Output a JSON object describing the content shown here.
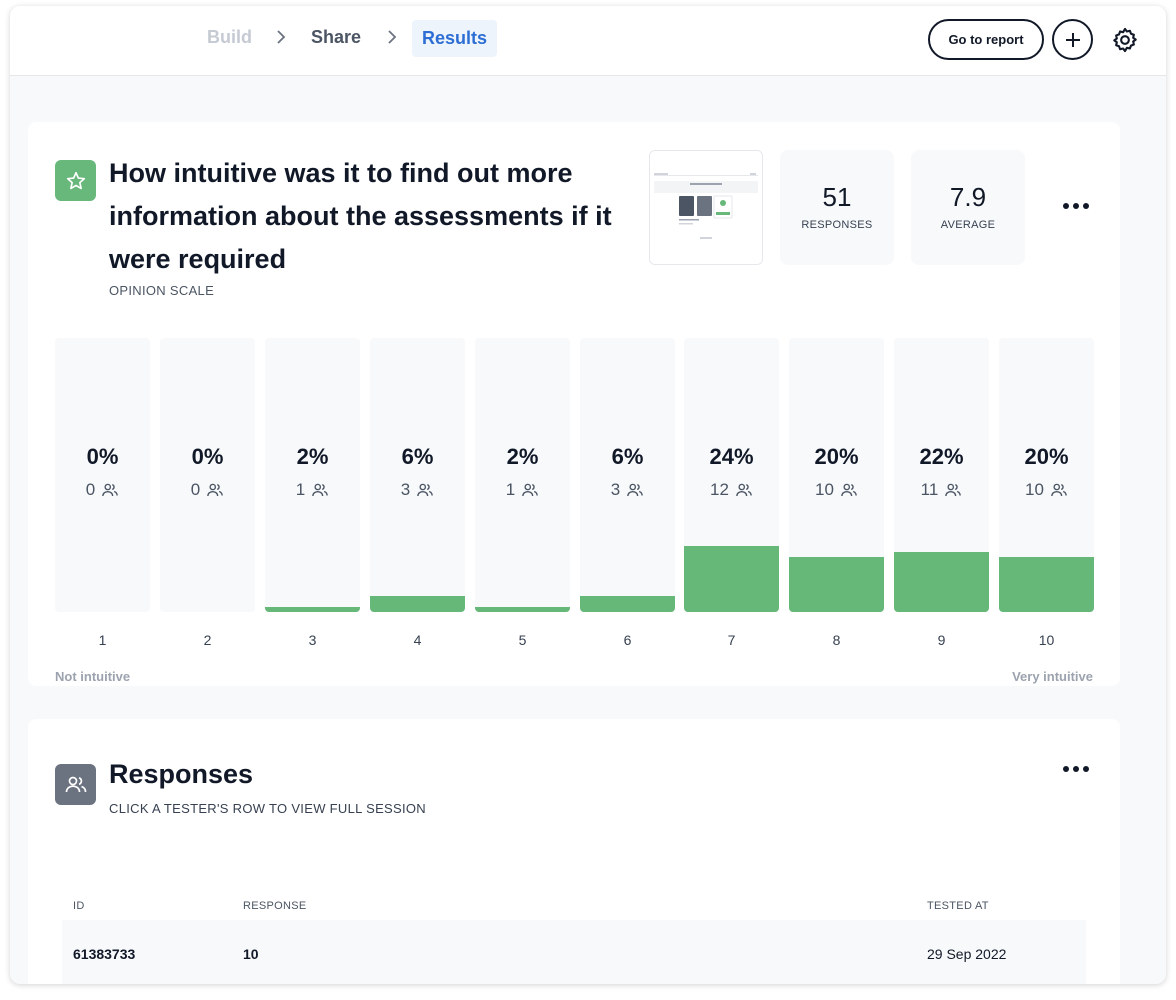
{
  "nav": {
    "crumbs": [
      "Build",
      "Share",
      "Results"
    ],
    "go_to_report": "Go to report"
  },
  "question": {
    "title": "How intuitive was it to find out more information about the assessments if it were required",
    "type": "OPINION SCALE",
    "responses_value": "51",
    "responses_label": "RESPONSES",
    "average_value": "7.9",
    "average_label": "AVERAGE",
    "scale_min_label": "Not intuitive",
    "scale_max_label": "Very intuitive"
  },
  "chart_data": {
    "type": "bar",
    "categories": [
      "1",
      "2",
      "3",
      "4",
      "5",
      "6",
      "7",
      "8",
      "9",
      "10"
    ],
    "values": [
      0,
      0,
      2,
      6,
      2,
      6,
      24,
      20,
      22,
      20
    ],
    "percent_labels": [
      "0%",
      "0%",
      "2%",
      "6%",
      "2%",
      "6%",
      "24%",
      "20%",
      "22%",
      "20%"
    ],
    "counts": [
      "0",
      "0",
      "1",
      "3",
      "1",
      "3",
      "12",
      "10",
      "11",
      "10"
    ],
    "ylim": [
      0,
      100
    ],
    "xlabel": "",
    "ylabel": "",
    "title": ""
  },
  "responses": {
    "title": "Responses",
    "subtitle": "CLICK A TESTER'S ROW TO VIEW FULL SESSION",
    "columns": [
      "ID",
      "RESPONSE",
      "TESTED AT"
    ],
    "rows": [
      {
        "id": "61383733",
        "response": "10",
        "tested_at": "29 Sep 2022"
      }
    ]
  },
  "colors": {
    "accent": "#2d6ed4",
    "bar_fill": "#66b878",
    "icon_green": "#67b87a",
    "icon_gray": "#6b7280"
  }
}
